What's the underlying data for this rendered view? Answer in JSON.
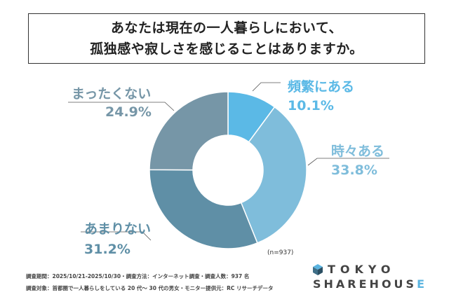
{
  "title": {
    "line1": "あなたは現在の一人暮らしにおいて、",
    "line2": "孤独感や寂しさを感じることはありますか。"
  },
  "chart_data": {
    "type": "pie",
    "donut": true,
    "categories": [
      "頻繁にある",
      "時々ある",
      "あまりない",
      "まったくない"
    ],
    "values": [
      10.1,
      33.8,
      31.2,
      24.9
    ],
    "value_labels": [
      "10.1%",
      "33.8%",
      "31.2%",
      "24.9%"
    ],
    "colors": [
      "#5bb9e6",
      "#7fbddb",
      "#5f8fa6",
      "#7696a7"
    ],
    "label_colors": [
      "#5bb9e6",
      "#7fbddb",
      "#5f8fa6",
      "#7696a7"
    ],
    "start_angle_deg": 0,
    "direction": "clockwise"
  },
  "note": "(n=937)",
  "footer": {
    "line1": "調査期間：2025/10/21-2025/10/30・調査方法：インターネット調査・調査人数：937 名",
    "line2": "調査対象：首都圏で一人暮らしをしている 20 代～ 30 代の男女・モニター提供元：RC リサーチデータ"
  },
  "logo": {
    "top": "TOKYO",
    "bottom_main": "SHAREHOUS",
    "bottom_accent": "E"
  },
  "icons": {
    "logo_mark": "cube-icon"
  }
}
